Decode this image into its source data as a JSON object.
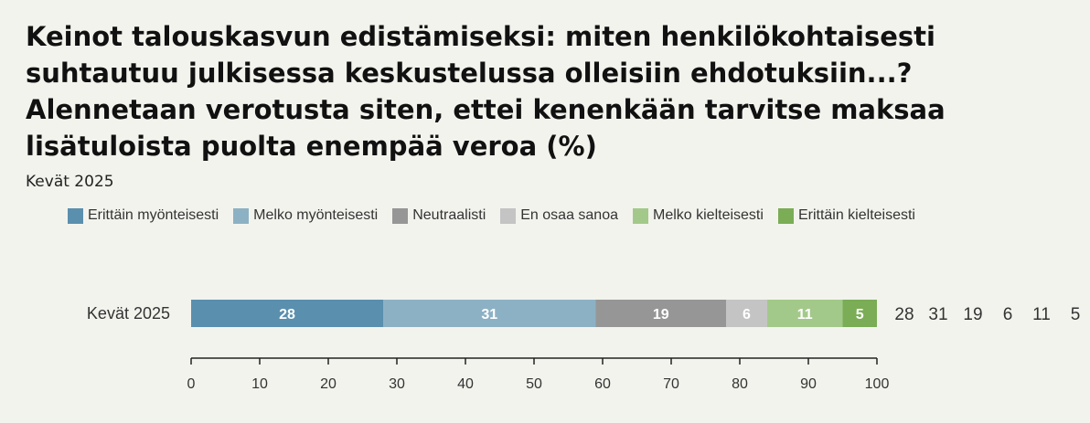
{
  "title": "Keinot talouskasvun edistämiseksi: miten henkilökohtaisesti suhtautuu julkisessa keskustelussa olleisiin ehdotuksiin...? Alennetaan verotusta siten, ettei kenenkään tarvitse maksaa lisätuloista puolta enempää veroa (%)",
  "subtitle": "Kevät 2025",
  "legend": [
    {
      "label": "Erittäin myönteisesti",
      "color": "#5a8fae"
    },
    {
      "label": "Melko myönteisesti",
      "color": "#8db1c4"
    },
    {
      "label": "Neutraalisti",
      "color": "#969696"
    },
    {
      "label": "En osaa sanoa",
      "color": "#c4c4c4"
    },
    {
      "label": "Melko kielteisesti",
      "color": "#a3c98a"
    },
    {
      "label": "Erittäin kielteisesti",
      "color": "#7aad55"
    }
  ],
  "chart_data": {
    "type": "bar",
    "orientation": "horizontal",
    "stacked": true,
    "categories": [
      "Kevät 2025"
    ],
    "series": [
      {
        "name": "Erittäin myönteisesti",
        "values": [
          28
        ]
      },
      {
        "name": "Melko myönteisesti",
        "values": [
          31
        ]
      },
      {
        "name": "Neutraalisti",
        "values": [
          19
        ]
      },
      {
        "name": "En osaa sanoa",
        "values": [
          6
        ]
      },
      {
        "name": "Melko kielteisesti",
        "values": [
          11
        ]
      },
      {
        "name": "Erittäin kielteisesti",
        "values": [
          5
        ]
      }
    ],
    "xlim": [
      0,
      100
    ],
    "xticks": [
      0,
      10,
      20,
      30,
      40,
      50,
      60,
      70,
      80,
      90,
      100
    ],
    "side_values": [
      "28",
      "31",
      "19",
      "6",
      "11",
      "5"
    ],
    "grid": false,
    "legend_position": "top"
  }
}
